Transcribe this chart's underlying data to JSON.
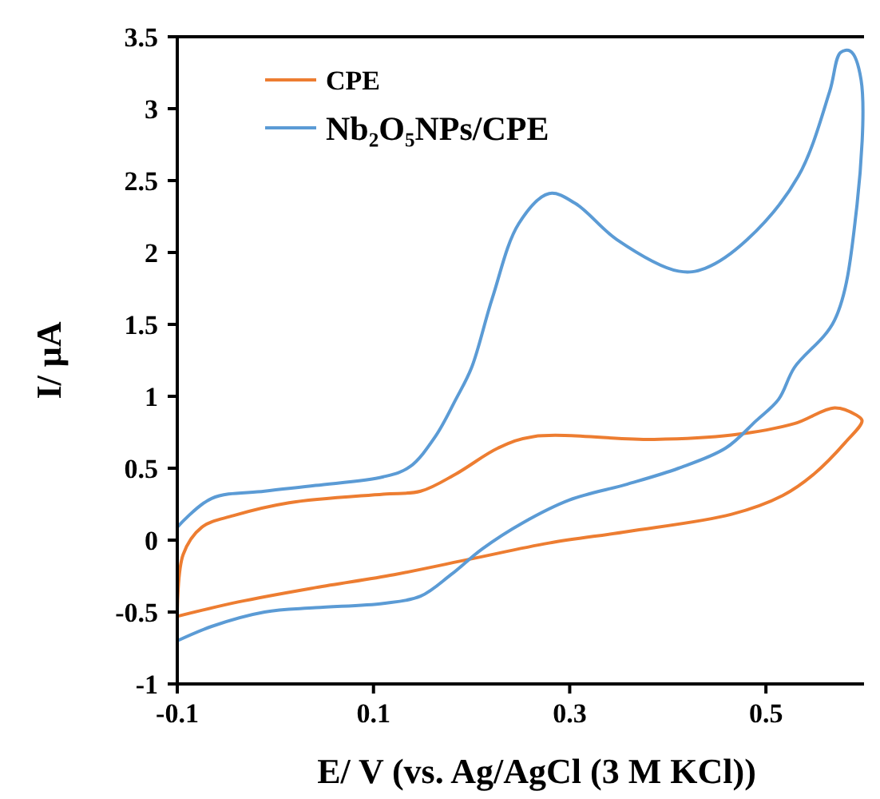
{
  "chart_data": {
    "type": "line",
    "xlabel": "E/ V (vs. Ag/AgCl (3 M KCl))",
    "ylabel": "I/ μA",
    "xlim": [
      -0.1,
      0.6
    ],
    "xticks": [
      -0.1,
      0.1,
      0.3,
      0.5
    ],
    "ylim": [
      -1,
      3.5
    ],
    "yticks": [
      -1,
      -0.5,
      0,
      0.5,
      1,
      1.5,
      2,
      2.5,
      3,
      3.5
    ],
    "grid": false,
    "legend": "top left",
    "line_style": "solid",
    "series": [
      {
        "name": "CPE",
        "color": "#ed7d31",
        "x": [
          -0.1,
          -0.094,
          -0.075,
          -0.043,
          0.014,
          0.11,
          0.148,
          0.184,
          0.227,
          0.263,
          0.386,
          0.465,
          0.529,
          0.57,
          0.592,
          0.598,
          0.581,
          0.549,
          0.517,
          0.465,
          0.359,
          0.279,
          0.2,
          0.121,
          0.041,
          -0.038,
          -0.1
        ],
        "values": [
          -0.5,
          -0.1,
          0.09,
          0.17,
          0.26,
          0.32,
          0.34,
          0.46,
          0.64,
          0.72,
          0.7,
          0.73,
          0.81,
          0.92,
          0.87,
          0.83,
          0.68,
          0.46,
          0.31,
          0.18,
          0.06,
          -0.02,
          -0.13,
          -0.24,
          -0.33,
          -0.43,
          -0.53
        ]
      },
      {
        "name": "Nb₂O₅NPs/CPE",
        "color": "#5b9bd5",
        "x": [
          -0.1,
          -0.065,
          -0.011,
          0.041,
          0.11,
          0.137,
          0.163,
          0.184,
          0.2,
          0.221,
          0.248,
          0.279,
          0.306,
          0.348,
          0.411,
          0.438,
          0.481,
          0.533,
          0.565,
          0.576,
          0.586,
          0.597,
          0.592,
          0.57,
          0.529,
          0.513,
          0.49,
          0.459,
          0.411,
          0.359,
          0.3,
          0.252,
          0.211,
          0.179,
          0.148,
          0.11,
          0.041,
          -0.011,
          -0.065,
          -0.1
        ],
        "values": [
          0.09,
          0.29,
          0.34,
          0.38,
          0.44,
          0.51,
          0.72,
          0.98,
          1.2,
          1.68,
          2.2,
          2.41,
          2.34,
          2.09,
          1.87,
          1.89,
          2.09,
          2.53,
          3.12,
          3.39,
          3.4,
          3.2,
          2.28,
          1.53,
          1.2,
          0.98,
          0.83,
          0.64,
          0.5,
          0.39,
          0.28,
          0.12,
          -0.06,
          -0.24,
          -0.39,
          -0.44,
          -0.47,
          -0.5,
          -0.6,
          -0.7
        ]
      }
    ]
  }
}
